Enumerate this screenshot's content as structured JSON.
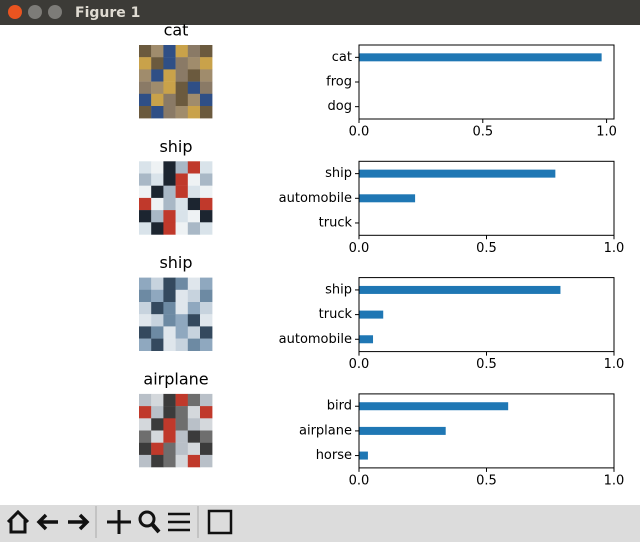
{
  "window": {
    "title": "Figure 1"
  },
  "chart_data": [
    {
      "type": "barh",
      "image_title": "cat",
      "categories": [
        "cat",
        "frog",
        "dog"
      ],
      "values": [
        0.98,
        0,
        0
      ],
      "color": "#1f77b4",
      "xlim": [
        0,
        1.03
      ],
      "xticks": [
        {
          "value": 0,
          "label": "0.0"
        },
        {
          "value": 0.5,
          "label": "0.5"
        },
        {
          "value": 1,
          "label": "1.0"
        }
      ]
    },
    {
      "type": "barh",
      "image_title": "ship",
      "categories": [
        "ship",
        "automobile",
        "truck"
      ],
      "values": [
        0.77,
        0.22,
        0
      ],
      "color": "#1f77b4",
      "xlim": [
        0,
        1
      ],
      "xticks": [
        {
          "value": 0,
          "label": "0.0"
        },
        {
          "value": 0.5,
          "label": "0.5"
        },
        {
          "value": 1,
          "label": "1.0"
        }
      ]
    },
    {
      "type": "barh",
      "image_title": "ship",
      "categories": [
        "ship",
        "truck",
        "automobile"
      ],
      "values": [
        0.79,
        0.095,
        0.055
      ],
      "color": "#1f77b4",
      "xlim": [
        0,
        1
      ],
      "xticks": [
        {
          "value": 0,
          "label": "0.0"
        },
        {
          "value": 0.5,
          "label": "0.5"
        },
        {
          "value": 1,
          "label": "1.0"
        }
      ]
    },
    {
      "type": "barh",
      "image_title": "airplane",
      "categories": [
        "bird",
        "airplane",
        "horse"
      ],
      "values": [
        0.585,
        0.34,
        0.035
      ],
      "color": "#1f77b4",
      "xlim": [
        0,
        1
      ],
      "xticks": [
        {
          "value": 0,
          "label": "0.0"
        },
        {
          "value": 0.5,
          "label": "0.5"
        },
        {
          "value": 1,
          "label": "1.0"
        }
      ]
    }
  ]
}
